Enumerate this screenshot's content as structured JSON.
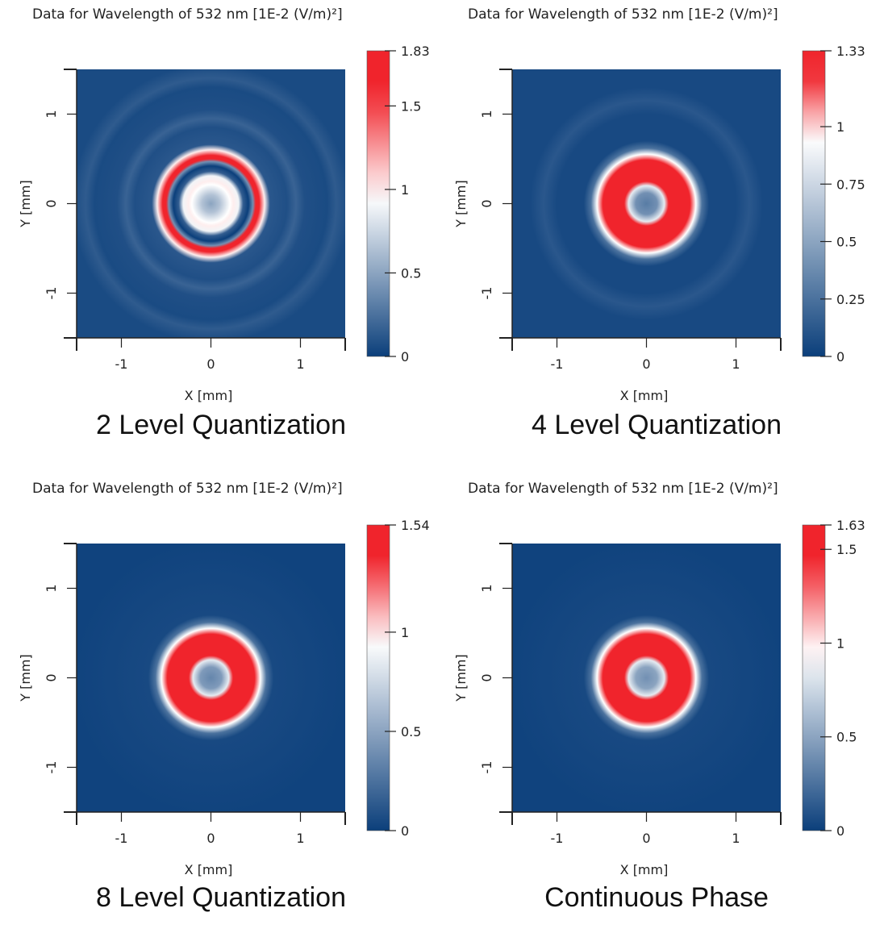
{
  "colors": {
    "low": "#0b3f7b",
    "mid": "#ffffff",
    "high": "#f0242c",
    "axis": "#222222"
  },
  "chart_data": [
    {
      "type": "heatmap",
      "title": "Data for Wavelength of 532 nm  [1E-2 (V/m)²]",
      "caption": "2 Level Quantization",
      "xlabel": "X [mm]",
      "ylabel": "Y [mm]",
      "xlim": [
        -1.5,
        1.5
      ],
      "ylim": [
        -1.5,
        1.5
      ],
      "x_ticks": [
        "-1",
        "0",
        "1"
      ],
      "y_ticks": [
        "1",
        "0",
        "-1"
      ],
      "colorbar": {
        "min": 0,
        "max": 1.83,
        "ticks": [
          "1.83",
          "1.5",
          "1",
          "0.5",
          "0"
        ]
      },
      "pattern": {
        "center_value": 0.5,
        "white_ring_radius_mm": 0.25,
        "dark_ring_radius_mm": 0.42,
        "bright_ring_radius_mm": 0.56,
        "bright_ring_value": 1.83,
        "faint_outer_rings": true
      }
    },
    {
      "type": "heatmap",
      "title": "Data for Wavelength of 532 nm  [1E-2 (V/m)²]",
      "caption": "4 Level Quantization",
      "xlabel": "X [mm]",
      "ylabel": "Y [mm]",
      "xlim": [
        -1.5,
        1.5
      ],
      "ylim": [
        -1.5,
        1.5
      ],
      "x_ticks": [
        "-1",
        "0",
        "1"
      ],
      "y_ticks": [
        "1",
        "0",
        "-1"
      ],
      "colorbar": {
        "min": 0,
        "max": 1.33,
        "ticks": [
          "1.33",
          "1",
          "0.75",
          "0.5",
          "0.25",
          "0"
        ]
      },
      "pattern": {
        "center_value": 0.3,
        "ring_radius_mm": 0.4,
        "ring_value": 1.33,
        "faint_outer_rings": true
      }
    },
    {
      "type": "heatmap",
      "title": "Data for Wavelength of 532 nm  [1E-2 (V/m)²]",
      "caption": "8 Level Quantization",
      "xlabel": "X [mm]",
      "ylabel": "Y [mm]",
      "xlim": [
        -1.5,
        1.5
      ],
      "ylim": [
        -1.5,
        1.5
      ],
      "x_ticks": [
        "-1",
        "0",
        "1"
      ],
      "y_ticks": [
        "1",
        "0",
        "-1"
      ],
      "colorbar": {
        "min": 0,
        "max": 1.54,
        "ticks": [
          "1.54",
          "1",
          "0.5",
          "0"
        ]
      },
      "pattern": {
        "center_value": 0.35,
        "ring_radius_mm": 0.4,
        "ring_value": 1.54,
        "faint_outer_rings": false
      }
    },
    {
      "type": "heatmap",
      "title": "Data for Wavelength of 532 nm  [1E-2 (V/m)²]",
      "caption": "Continuous Phase",
      "xlabel": "X [mm]",
      "ylabel": "Y [mm]",
      "xlim": [
        -1.5,
        1.5
      ],
      "ylim": [
        -1.5,
        1.5
      ],
      "x_ticks": [
        "-1",
        "0",
        "1"
      ],
      "y_ticks": [
        "1",
        "0",
        "-1"
      ],
      "colorbar": {
        "min": 0,
        "max": 1.63,
        "ticks": [
          "1.63",
          "1.5",
          "1",
          "0.5",
          "0"
        ]
      },
      "pattern": {
        "center_value": 0.4,
        "ring_radius_mm": 0.4,
        "ring_value": 1.63,
        "faint_outer_rings": false
      }
    }
  ]
}
